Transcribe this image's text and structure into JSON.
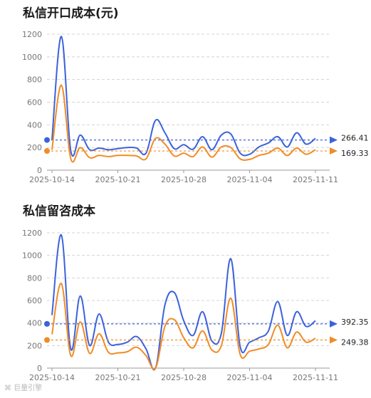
{
  "chart_data": [
    {
      "type": "line",
      "title": "私信开口成本(元)",
      "ylim": [
        0,
        1200
      ],
      "y_ticks": [
        0,
        200,
        400,
        600,
        800,
        1000,
        1200
      ],
      "x_ticks": [
        "2025-10-14",
        "2025-10-21",
        "2025-10-28",
        "2025-11-04",
        "2025-11-11"
      ],
      "grid": true,
      "x": [
        "2025-10-14",
        "2025-10-15",
        "2025-10-16",
        "2025-10-17",
        "2025-10-18",
        "2025-10-19",
        "2025-10-20",
        "2025-10-21",
        "2025-10-22",
        "2025-10-23",
        "2025-10-24",
        "2025-10-25",
        "2025-10-26",
        "2025-10-27",
        "2025-10-28",
        "2025-10-29",
        "2025-10-30",
        "2025-10-31",
        "2025-11-01",
        "2025-11-02",
        "2025-11-03",
        "2025-11-04",
        "2025-11-05",
        "2025-11-06",
        "2025-11-07",
        "2025-11-08",
        "2025-11-09",
        "2025-11-10",
        "2025-11-11"
      ],
      "series": [
        {
          "color": "#3c62dc",
          "values": [
            270,
            1180,
            170,
            310,
            180,
            195,
            180,
            190,
            200,
            195,
            150,
            440,
            330,
            190,
            225,
            185,
            295,
            180,
            310,
            320,
            150,
            140,
            205,
            240,
            295,
            205,
            330,
            230,
            280
          ],
          "avg": 266.41,
          "avg_label": "266.41"
        },
        {
          "color": "#f08c28",
          "values": [
            180,
            750,
            100,
            200,
            110,
            130,
            120,
            130,
            130,
            125,
            100,
            280,
            230,
            125,
            150,
            120,
            205,
            115,
            205,
            200,
            100,
            95,
            130,
            150,
            195,
            130,
            195,
            140,
            180
          ],
          "avg": 169.33,
          "avg_label": "169.33"
        }
      ]
    },
    {
      "type": "line",
      "title": "私信留咨成本",
      "ylim": [
        0,
        1200
      ],
      "y_ticks": [
        0,
        200,
        400,
        600,
        800,
        1000,
        1200
      ],
      "x_ticks": [
        "2025-10-14",
        "2025-10-21",
        "2025-10-28",
        "2025-11-04",
        "2025-11-11"
      ],
      "grid": true,
      "x": [
        "2025-10-14",
        "2025-10-15",
        "2025-10-16",
        "2025-10-17",
        "2025-10-18",
        "2025-10-19",
        "2025-10-20",
        "2025-10-21",
        "2025-10-22",
        "2025-10-23",
        "2025-10-24",
        "2025-10-25",
        "2025-10-26",
        "2025-10-27",
        "2025-10-28",
        "2025-10-29",
        "2025-10-30",
        "2025-10-31",
        "2025-11-01",
        "2025-11-02",
        "2025-11-03",
        "2025-11-04",
        "2025-11-05",
        "2025-11-06",
        "2025-11-07",
        "2025-11-08",
        "2025-11-09",
        "2025-11-10",
        "2025-11-11"
      ],
      "series": [
        {
          "color": "#3c62dc",
          "values": [
            470,
            1180,
            170,
            640,
            200,
            480,
            230,
            210,
            230,
            280,
            170,
            0,
            560,
            670,
            420,
            290,
            500,
            240,
            310,
            970,
            190,
            230,
            270,
            330,
            590,
            290,
            500,
            370,
            420
          ],
          "avg": 392.35,
          "avg_label": "392.35"
        },
        {
          "color": "#f08c28",
          "values": [
            300,
            750,
            110,
            410,
            130,
            305,
            140,
            135,
            145,
            185,
            110,
            0,
            370,
            430,
            270,
            180,
            330,
            160,
            200,
            620,
            120,
            150,
            170,
            210,
            380,
            180,
            320,
            230,
            265
          ],
          "avg": 249.38,
          "avg_label": "249.38"
        }
      ]
    }
  ],
  "watermark": "巨量引擎"
}
